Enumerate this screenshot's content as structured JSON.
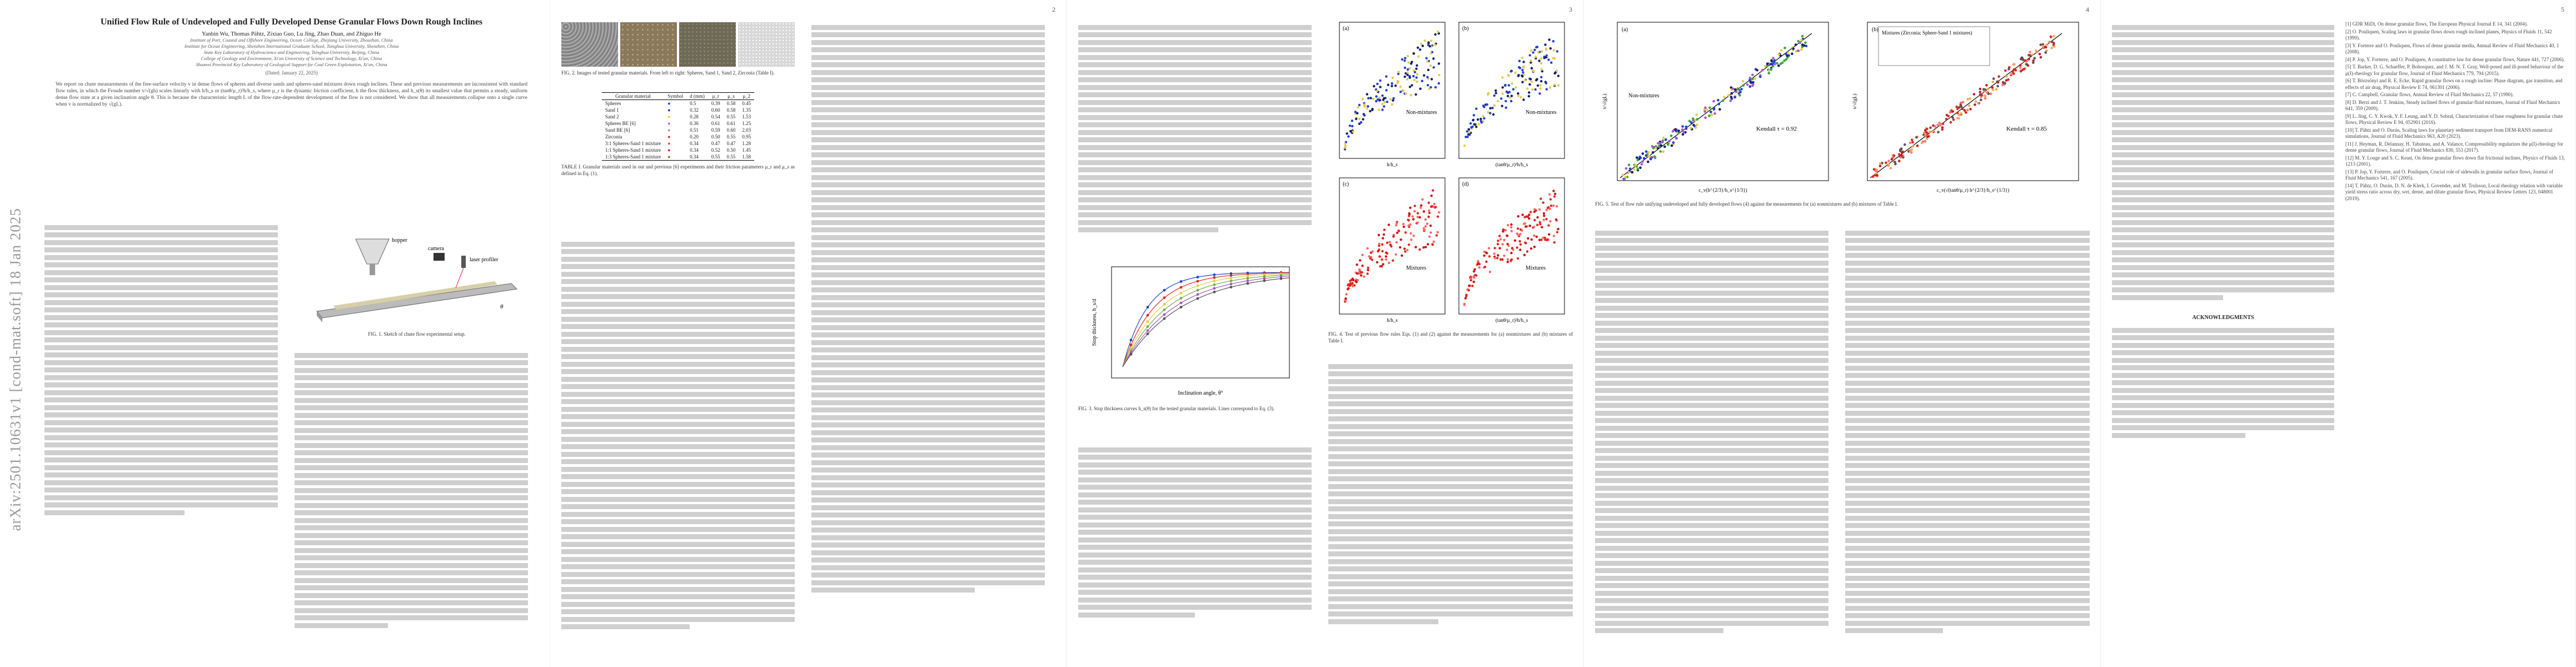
{
  "arxiv_stamp": "arXiv:2501.10631v1  [cond-mat.soft]  18 Jan 2025",
  "page_numbers": [
    "2",
    "3",
    "4",
    "5"
  ],
  "paper": {
    "title": "Unified Flow Rule of Undeveloped and Fully Developed Dense Granular Flows Down Rough Inclines",
    "authors": "Yanbin Wu, Thomas Pähtz, Zixiao Guo, Lu Jing, Zhao Duan, and Zhiguo He",
    "affiliations": [
      "Institute of Port, Coastal and Offshore Engineering, Ocean College, Zhejiang University, Zhoushan, China",
      "Institute for Ocean Engineering, Shenzhen International Graduate School, Tsinghua University, Shenzhen, China",
      "State Key Laboratory of Hydroscience and Engineering, Tsinghua University, Beijing, China",
      "College of Geology and Environment, Xi'an University of Science and Technology, Xi'an, China",
      "Shaanxi Provincial Key Laboratory of Geological Support for Coal Green Exploitation, Xi'an, China"
    ],
    "date": "(Dated: January 22, 2025)",
    "abstract": "We report on chute measurements of the free-surface velocity v in dense flows of spheres and diverse sands and spheres-sand mixtures down rough inclines. These and previous measurements are inconsistent with standard flow rules, in which the Froude number v/√(gh) scales linearly with h/h_s or (tanθ/μ_r)²h/h_s, where μ_r is the dynamic friction coefficient, h the flow thickness, and h_s(θ) its smallest value that permits a steady, uniform dense flow state at a given inclination angle θ. This is because the characteristic length L of the flow-rate-dependent development of the flow is not considered. We show that all measurements collapse onto a single curve when v is normalized by √(gL)."
  },
  "fig1": {
    "labels": [
      "hopper",
      "laser profiler",
      "camera",
      "θ"
    ],
    "caption": "FIG. 1. Sketch of chute flow experimental setup."
  },
  "fig2": {
    "caption": "FIG. 2. Images of tested granular materials. From left to right: Spheres, Sand 1, Sand 2, Zirconia (Table I)."
  },
  "table1": {
    "headers": [
      "Granular material",
      "Symbol",
      "d (mm)",
      "μ_r",
      "μ_s",
      "μ_2"
    ],
    "rows": [
      [
        "Spheres",
        "●",
        "0.5",
        "0.39",
        "0.58",
        "0.45"
      ],
      [
        "Sand 1",
        "●",
        "0.32",
        "0.60",
        "0.58",
        "1.35"
      ],
      [
        "Sand 2",
        "●",
        "0.28",
        "0.54",
        "0.55",
        "1.53"
      ],
      [
        "Spheres BE [6]",
        "●",
        "0.36",
        "0.61",
        "0.61",
        "1.25"
      ],
      [
        "Sand BE [6]",
        "●",
        "0.51",
        "0.59",
        "0.60",
        "2.03"
      ],
      [
        "Zirconia",
        "●",
        "0.20",
        "0.50",
        "0.55",
        "0.95"
      ],
      [
        "3:1 Spheres-Sand 1 mixture",
        "●",
        "0.34",
        "0.47",
        "0.47",
        "1.28"
      ],
      [
        "1:1 Spheres-Sand 1 mixture",
        "●",
        "0.34",
        "0.52",
        "0.50",
        "1.45"
      ],
      [
        "1:3 Spheres-Sand 1 mixture",
        "●",
        "0.34",
        "0.55",
        "0.55",
        "1.58"
      ]
    ],
    "caption": "TABLE I. Granular materials used in our and previous [6] experiments and their friction parameters μ_r and μ_s as defined in Eq. (1)."
  },
  "fig3": {
    "xlabel": "Inclination angle, θ°",
    "ylabel": "Stop thickness, h_s/d",
    "caption": "FIG. 3. Stop thickness curves h_s(θ) for the tested granular materials. Lines correspond to Eq. (3)."
  },
  "fig4": {
    "panels": [
      "(a)",
      "(b)",
      "(c)",
      "(d)"
    ],
    "labels": [
      "Non-mixtures",
      "Non-mixtures",
      "Mixtures",
      "Mixtures"
    ],
    "xlabels": [
      "h/h_s",
      "(tanθ/μ_r)²h/h_s"
    ],
    "caption": "FIG. 4. Test of previous flow rules Eqs. (1) and (2) against the measurements for (a) nonmixtures and (b) mixtures of Table I."
  },
  "fig5": {
    "panels": [
      "(a)",
      "(b)"
    ],
    "legend_title": "Mixtures (Zirconia; Sphere-Sand 1 mixtures)",
    "kendall_a": "Kendall τ = 0.92",
    "kendall_b": "Kendall τ = 0.85",
    "label_nonmix": "Non-mixtures",
    "xlabels": [
      "c_v(h^{2/3}/h_s^{1/3})",
      "c_v(√(tanθ/μ_r) h^{2/3}/h_s^{1/3})"
    ],
    "ylabel": "v/√(gL)",
    "caption": "FIG. 5. Test of flow rule unifying undeveloped and fully developed flows (4) against the measurements for (a) nonmixtures and (b) mixtures of Table I."
  },
  "sections": {
    "ack_title": "ACKNOWLEDGMENTS"
  },
  "references": [
    "[1] GDR MiDi, On dense granular flows, The European Physical Journal E 14, 341 (2004).",
    "[2] O. Pouliquen, Scaling laws in granular flows down rough inclined planes, Physics of Fluids 11, 542 (1999).",
    "[3] Y. Forterre and O. Pouliquen, Flows of dense granular media, Annual Review of Fluid Mechanics 40, 1 (2008).",
    "[4] P. Jop, Y. Forterre, and O. Pouliquen, A constitutive law for dense granular flows, Nature 441, 727 (2006).",
    "[5] T. Barker, D. G. Schaeffer, P. Bohorquez, and J. M. N. T. Gray, Well-posed and ill-posed behaviour of the μ(I)-rheology for granular flow, Journal of Fluid Mechanics 779, 794 (2015).",
    "[6] T. Börzsönyi and R. E. Ecke, Rapid granular flows on a rough incline: Phase diagram, gas transition, and effects of air drag, Physical Review E 74, 061301 (2006).",
    "[7] C. Campbell, Granular flows, Annual Review of Fluid Mechanics 22, 57 (1990).",
    "[8] D. Berzi and J. T. Jenkins, Steady inclined flows of granular-fluid mixtures, Journal of Fluid Mechanics 641, 359 (2009).",
    "[9] L. Jing, C. Y. Kwok, Y. F. Leung, and Y. D. Sobral, Characterization of base roughness for granular chute flows, Physical Review E 94, 052901 (2016).",
    "[10] T. Pähtz and O. Durán, Scaling laws for planetary sediment transport from DEM-RANS numerical simulations, Journal of Fluid Mechanics 963, A20 (2023).",
    "[11] J. Heyman, R. Delannay, H. Tabuteau, and A. Valance, Compressibility regularizes the μ(I)-rheology for dense granular flows, Journal of Fluid Mechanics 830, 553 (2017).",
    "[12] M. Y. Louge and S. C. Keast, On dense granular flows down flat frictional inclines, Physics of Fluids 13, 1213 (2001).",
    "[13] P. Jop, Y. Forterre, and O. Pouliquen, Crucial role of sidewalls in granular surface flows, Journal of Fluid Mechanics 541, 167 (2005).",
    "[14] T. Pähtz, O. Durán, D. N. de Klerk, I. Govender, and M. Trulsson, Local rheology relation with variable yield stress ratio across dry, wet, dense, and dilute granular flows, Physical Review Letters 123, 048001 (2019)."
  ],
  "colors": {
    "blue": "#1f3fd6",
    "red": "#e0281e",
    "yellow": "#e8c84a",
    "navy": "#10206b",
    "gray_text": "#cfcfcf"
  }
}
